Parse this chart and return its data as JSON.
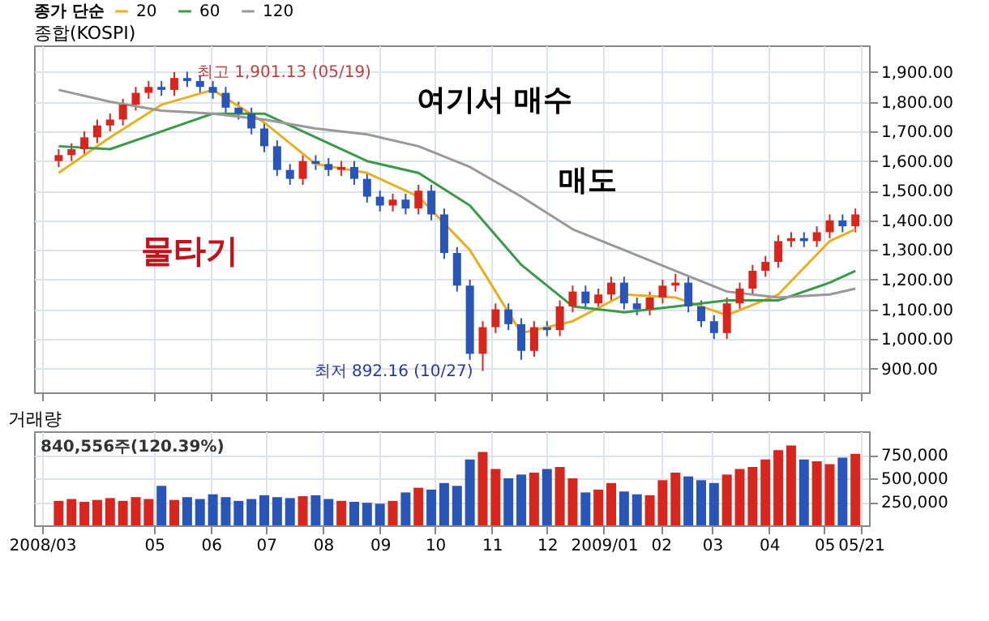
{
  "chart_data": [
    {
      "type": "candlestick",
      "title": "종합(KOSPI)",
      "legend_title": "종가 단순",
      "legend": "top",
      "grid": true,
      "tick_labels": "y",
      "x": [
        "2008-03-10",
        "2008-03-17",
        "2008-03-24",
        "2008-03-31",
        "2008-04-07",
        "2008-04-14",
        "2008-04-21",
        "2008-04-28",
        "2008-05-05",
        "2008-05-12",
        "2008-05-19",
        "2008-05-26",
        "2008-06-02",
        "2008-06-09",
        "2008-06-16",
        "2008-06-23",
        "2008-06-30",
        "2008-07-07",
        "2008-07-14",
        "2008-07-21",
        "2008-07-28",
        "2008-08-04",
        "2008-08-11",
        "2008-08-18",
        "2008-08-25",
        "2008-09-01",
        "2008-09-08",
        "2008-09-15",
        "2008-09-22",
        "2008-09-29",
        "2008-10-06",
        "2008-10-13",
        "2008-10-20",
        "2008-10-27",
        "2008-11-03",
        "2008-11-10",
        "2008-11-17",
        "2008-11-24",
        "2008-12-01",
        "2008-12-08",
        "2008-12-15",
        "2008-12-22",
        "2008-12-29",
        "2009-01-05",
        "2009-01-12",
        "2009-01-19",
        "2009-01-26",
        "2009-02-02",
        "2009-02-09",
        "2009-02-16",
        "2009-02-23",
        "2009-03-02",
        "2009-03-09",
        "2009-03-16",
        "2009-03-23",
        "2009-03-30",
        "2009-04-06",
        "2009-04-13",
        "2009-04-20",
        "2009-04-27",
        "2009-05-04",
        "2009-05-11",
        "2009-05-18"
      ],
      "ohlc": [
        [
          1600,
          1640,
          1580,
          1620
        ],
        [
          1620,
          1660,
          1600,
          1640
        ],
        [
          1640,
          1700,
          1620,
          1680
        ],
        [
          1680,
          1740,
          1660,
          1720
        ],
        [
          1720,
          1760,
          1700,
          1740
        ],
        [
          1740,
          1810,
          1720,
          1790
        ],
        [
          1790,
          1850,
          1770,
          1830
        ],
        [
          1830,
          1870,
          1810,
          1850
        ],
        [
          1850,
          1870,
          1820,
          1840
        ],
        [
          1840,
          1900,
          1820,
          1880
        ],
        [
          1880,
          1901.13,
          1850,
          1870
        ],
        [
          1870,
          1890,
          1830,
          1850
        ],
        [
          1850,
          1870,
          1810,
          1830
        ],
        [
          1830,
          1850,
          1760,
          1780
        ],
        [
          1780,
          1800,
          1740,
          1760
        ],
        [
          1760,
          1780,
          1690,
          1710
        ],
        [
          1710,
          1730,
          1630,
          1650
        ],
        [
          1650,
          1670,
          1550,
          1570
        ],
        [
          1570,
          1590,
          1520,
          1540
        ],
        [
          1540,
          1620,
          1520,
          1600
        ],
        [
          1600,
          1620,
          1570,
          1590
        ],
        [
          1590,
          1610,
          1550,
          1570
        ],
        [
          1570,
          1600,
          1550,
          1580
        ],
        [
          1580,
          1600,
          1520,
          1540
        ],
        [
          1540,
          1560,
          1460,
          1480
        ],
        [
          1480,
          1500,
          1430,
          1450
        ],
        [
          1450,
          1490,
          1430,
          1470
        ],
        [
          1470,
          1490,
          1420,
          1440
        ],
        [
          1440,
          1520,
          1420,
          1500
        ],
        [
          1500,
          1520,
          1400,
          1420
        ],
        [
          1420,
          1440,
          1270,
          1290
        ],
        [
          1290,
          1310,
          1160,
          1180
        ],
        [
          1180,
          1200,
          930,
          950
        ],
        [
          950,
          1060,
          892.16,
          1040
        ],
        [
          1040,
          1120,
          1020,
          1100
        ],
        [
          1100,
          1120,
          1030,
          1050
        ],
        [
          1050,
          1070,
          930,
          960
        ],
        [
          960,
          1060,
          940,
          1040
        ],
        [
          1040,
          1060,
          1010,
          1030
        ],
        [
          1030,
          1130,
          1010,
          1110
        ],
        [
          1110,
          1180,
          1090,
          1160
        ],
        [
          1160,
          1180,
          1100,
          1120
        ],
        [
          1120,
          1170,
          1100,
          1150
        ],
        [
          1150,
          1210,
          1130,
          1190
        ],
        [
          1190,
          1210,
          1100,
          1120
        ],
        [
          1120,
          1140,
          1080,
          1100
        ],
        [
          1100,
          1160,
          1080,
          1140
        ],
        [
          1140,
          1200,
          1120,
          1180
        ],
        [
          1180,
          1220,
          1160,
          1190
        ],
        [
          1190,
          1210,
          1090,
          1110
        ],
        [
          1110,
          1130,
          1040,
          1060
        ],
        [
          1060,
          1080,
          1000,
          1020
        ],
        [
          1020,
          1140,
          1000,
          1120
        ],
        [
          1120,
          1190,
          1100,
          1170
        ],
        [
          1170,
          1250,
          1150,
          1230
        ],
        [
          1230,
          1280,
          1210,
          1260
        ],
        [
          1260,
          1350,
          1240,
          1330
        ],
        [
          1330,
          1360,
          1310,
          1340
        ],
        [
          1340,
          1360,
          1310,
          1330
        ],
        [
          1330,
          1380,
          1310,
          1360
        ],
        [
          1360,
          1420,
          1340,
          1400
        ],
        [
          1400,
          1420,
          1360,
          1380
        ],
        [
          1380,
          1440,
          1360,
          1420
        ]
      ],
      "colors": [
        "#d7261e",
        "#d7261e",
        "#d7261e",
        "#d7261e",
        "#d7261e",
        "#d7261e",
        "#d7261e",
        "#d7261e",
        "#2a55b8",
        "#d7261e",
        "#2a55b8",
        "#2a55b8",
        "#2a55b8",
        "#2a55b8",
        "#2a55b8",
        "#2a55b8",
        "#2a55b8",
        "#2a55b8",
        "#2a55b8",
        "#d7261e",
        "#2a55b8",
        "#2a55b8",
        "#d7261e",
        "#2a55b8",
        "#2a55b8",
        "#2a55b8",
        "#d7261e",
        "#2a55b8",
        "#d7261e",
        "#2a55b8",
        "#2a55b8",
        "#2a55b8",
        "#2a55b8",
        "#d7261e",
        "#d7261e",
        "#2a55b8",
        "#2a55b8",
        "#d7261e",
        "#2a55b8",
        "#d7261e",
        "#d7261e",
        "#2a55b8",
        "#d7261e",
        "#d7261e",
        "#2a55b8",
        "#2a55b8",
        "#d7261e",
        "#d7261e",
        "#d7261e",
        "#2a55b8",
        "#2a55b8",
        "#2a55b8",
        "#d7261e",
        "#d7261e",
        "#d7261e",
        "#d7261e",
        "#d7261e",
        "#d7261e",
        "#2a55b8",
        "#d7261e",
        "#d7261e",
        "#2a55b8",
        "#d7261e"
      ],
      "xlim": [
        "2008-03-01",
        "2009-05-21"
      ],
      "series": [
        {
          "type": "line",
          "name": "20",
          "color": "#e8b020",
          "x": [
            "2008-03-10",
            "2008-04-07",
            "2008-05-05",
            "2008-06-02",
            "2008-06-30",
            "2008-07-28",
            "2008-08-25",
            "2008-09-22",
            "2008-10-20",
            "2008-11-17",
            "2008-12-15",
            "2009-01-12",
            "2009-02-09",
            "2009-03-09",
            "2009-04-06",
            "2009-05-04",
            "2009-05-18"
          ],
          "values": [
            1560,
            1680,
            1790,
            1840,
            1730,
            1590,
            1560,
            1480,
            1300,
            1020,
            1060,
            1150,
            1140,
            1080,
            1150,
            1330,
            1370
          ]
        },
        {
          "type": "line",
          "name": "60",
          "color": "#3a9a4a",
          "x": [
            "2008-03-10",
            "2008-04-07",
            "2008-05-05",
            "2008-06-02",
            "2008-06-30",
            "2008-07-28",
            "2008-08-25",
            "2008-09-22",
            "2008-10-20",
            "2008-11-17",
            "2008-12-15",
            "2009-01-12",
            "2009-02-09",
            "2009-03-09",
            "2009-04-06",
            "2009-05-04",
            "2009-05-18"
          ],
          "values": [
            1650,
            1640,
            1700,
            1760,
            1760,
            1680,
            1600,
            1560,
            1450,
            1250,
            1110,
            1090,
            1110,
            1130,
            1130,
            1190,
            1230
          ]
        },
        {
          "type": "line",
          "name": "120",
          "color": "#999999",
          "x": [
            "2008-03-10",
            "2008-04-07",
            "2008-05-05",
            "2008-06-02",
            "2008-06-30",
            "2008-07-28",
            "2008-08-25",
            "2008-09-22",
            "2008-10-20",
            "2008-11-17",
            "2008-12-15",
            "2009-01-12",
            "2009-02-09",
            "2009-03-09",
            "2009-04-06",
            "2009-05-04",
            "2009-05-18"
          ],
          "values": [
            1840,
            1800,
            1770,
            1760,
            1740,
            1710,
            1690,
            1650,
            1580,
            1480,
            1370,
            1300,
            1230,
            1160,
            1140,
            1150,
            1170
          ]
        }
      ],
      "ylim": [
        820,
        1990
      ],
      "yticks": [
        {
          "value": 900,
          "label": "900.00"
        },
        {
          "value": 1000,
          "label": "1,000.00"
        },
        {
          "value": 1100,
          "label": "1,100.00"
        },
        {
          "value": 1200,
          "label": "1,200.00"
        },
        {
          "value": 1300,
          "label": "1,300.00"
        },
        {
          "value": 1400,
          "label": "1,400.00"
        },
        {
          "value": 1500,
          "label": "1,500.00"
        },
        {
          "value": 1600,
          "label": "1,600.00"
        },
        {
          "value": 1700,
          "label": "1,700.00"
        },
        {
          "value": 1800,
          "label": "1,800.00"
        },
        {
          "value": 1900,
          "label": "1,900.00"
        }
      ],
      "annotations": [
        {
          "text": "최고 1,901.13 (05/19)",
          "x": "2008-05-19",
          "y": 1901.13
        },
        {
          "text": "최저 892.16 (10/27)",
          "x": "2008-10-27",
          "y": 892.16
        },
        "여기서 매수",
        "매도",
        "물타기"
      ]
    },
    {
      "type": "bar",
      "title": "거래량",
      "annotations": [
        "840,556주(120.39%)"
      ],
      "grid": true,
      "x": [
        "2008-03-10",
        "2008-03-17",
        "2008-03-24",
        "2008-03-31",
        "2008-04-07",
        "2008-04-14",
        "2008-04-21",
        "2008-04-28",
        "2008-05-05",
        "2008-05-12",
        "2008-05-19",
        "2008-05-26",
        "2008-06-02",
        "2008-06-09",
        "2008-06-16",
        "2008-06-23",
        "2008-06-30",
        "2008-07-07",
        "2008-07-14",
        "2008-07-21",
        "2008-07-28",
        "2008-08-04",
        "2008-08-11",
        "2008-08-18",
        "2008-08-25",
        "2008-09-01",
        "2008-09-08",
        "2008-09-15",
        "2008-09-22",
        "2008-09-29",
        "2008-10-06",
        "2008-10-13",
        "2008-10-20",
        "2008-10-27",
        "2008-11-03",
        "2008-11-10",
        "2008-11-17",
        "2008-11-24",
        "2008-12-01",
        "2008-12-08",
        "2008-12-15",
        "2008-12-22",
        "2008-12-29",
        "2009-01-05",
        "2009-01-12",
        "2009-01-19",
        "2009-01-26",
        "2009-02-02",
        "2009-02-09",
        "2009-02-16",
        "2009-02-23",
        "2009-03-02",
        "2009-03-09",
        "2009-03-16",
        "2009-03-23",
        "2009-03-30",
        "2009-04-06",
        "2009-04-13",
        "2009-04-20",
        "2009-04-27",
        "2009-05-04",
        "2009-05-11",
        "2009-05-18"
      ],
      "values": [
        260000,
        280000,
        250000,
        270000,
        290000,
        260000,
        300000,
        280000,
        420000,
        270000,
        300000,
        280000,
        330000,
        300000,
        260000,
        280000,
        320000,
        300000,
        290000,
        310000,
        320000,
        280000,
        260000,
        250000,
        240000,
        230000,
        260000,
        350000,
        400000,
        380000,
        450000,
        420000,
        700000,
        780000,
        600000,
        500000,
        540000,
        560000,
        600000,
        620000,
        500000,
        350000,
        380000,
        450000,
        360000,
        330000,
        320000,
        480000,
        560000,
        520000,
        480000,
        450000,
        540000,
        600000,
        620000,
        700000,
        800000,
        850000,
        700000,
        680000,
        650000,
        720000,
        760000
      ],
      "colors": [
        "#d7261e",
        "#d7261e",
        "#d7261e",
        "#d7261e",
        "#d7261e",
        "#d7261e",
        "#d7261e",
        "#d7261e",
        "#2a55b8",
        "#d7261e",
        "#2a55b8",
        "#2a55b8",
        "#2a55b8",
        "#2a55b8",
        "#2a55b8",
        "#2a55b8",
        "#2a55b8",
        "#2a55b8",
        "#2a55b8",
        "#d7261e",
        "#2a55b8",
        "#2a55b8",
        "#d7261e",
        "#2a55b8",
        "#2a55b8",
        "#2a55b8",
        "#d7261e",
        "#2a55b8",
        "#d7261e",
        "#2a55b8",
        "#2a55b8",
        "#2a55b8",
        "#2a55b8",
        "#d7261e",
        "#d7261e",
        "#2a55b8",
        "#2a55b8",
        "#d7261e",
        "#2a55b8",
        "#d7261e",
        "#d7261e",
        "#2a55b8",
        "#d7261e",
        "#d7261e",
        "#2a55b8",
        "#2a55b8",
        "#d7261e",
        "#d7261e",
        "#d7261e",
        "#2a55b8",
        "#2a55b8",
        "#2a55b8",
        "#d7261e",
        "#d7261e",
        "#d7261e",
        "#d7261e",
        "#d7261e",
        "#d7261e",
        "#2a55b8",
        "#d7261e",
        "#d7261e",
        "#2a55b8",
        "#d7261e"
      ],
      "xlim": [
        "2008-03-01",
        "2009-05-21"
      ],
      "xticks": [
        {
          "value": "2008-03-01",
          "label": "2008/03"
        },
        {
          "value": "2008-05-01",
          "label": "05"
        },
        {
          "value": "2008-06-01",
          "label": "06"
        },
        {
          "value": "2008-07-01",
          "label": "07"
        },
        {
          "value": "2008-08-01",
          "label": "08"
        },
        {
          "value": "2008-09-01",
          "label": "09"
        },
        {
          "value": "2008-10-01",
          "label": "10"
        },
        {
          "value": "2008-11-01",
          "label": "11"
        },
        {
          "value": "2008-12-01",
          "label": "12"
        },
        {
          "value": "2009-01-01",
          "label": "2009/01"
        },
        {
          "value": "2009-02-01",
          "label": "02"
        },
        {
          "value": "2009-03-01",
          "label": "03"
        },
        {
          "value": "2009-04-01",
          "label": "04"
        },
        {
          "value": "2009-05-01",
          "label": "05"
        },
        {
          "value": "2009-05-21",
          "label": "05/21"
        }
      ],
      "ylim": [
        0,
        1000000
      ],
      "yticks": [
        {
          "value": 250000,
          "label": "250,000"
        },
        {
          "value": 500000,
          "label": "500,000"
        },
        {
          "value": 750000,
          "label": "750,000"
        }
      ]
    }
  ]
}
